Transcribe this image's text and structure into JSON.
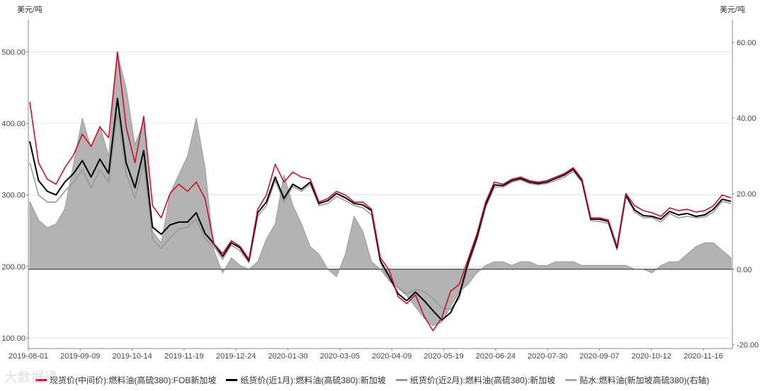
{
  "chart_data": {
    "type": "line",
    "unit_left": "美元/吨",
    "unit_right": "美元/吨",
    "x_labels": [
      "2019-08-01",
      "2019-09-09",
      "2019-10-14",
      "2019-11-19",
      "2019-12-24",
      "2020-01-30",
      "2020-03-05",
      "2020-04-09",
      "2020-05-19",
      "2020-06-24",
      "2020-07-30",
      "2020-09-07",
      "2020-10-12",
      "2020-11-16"
    ],
    "y_left": {
      "min": 85,
      "max": 545,
      "ticks": [
        "100.00",
        "200.00",
        "300.00",
        "400.00",
        "500.00"
      ],
      "tick_values": [
        100,
        200,
        300,
        400,
        500
      ]
    },
    "y_right": {
      "min": -21,
      "max": 66,
      "ticks": [
        "-20.00",
        "0.00",
        "20.00",
        "40.00",
        "60.00"
      ],
      "tick_values": [
        -20,
        0,
        20,
        40,
        60
      ]
    },
    "series": [
      {
        "name": "现货价(中间价):燃料油(高硫380):FOB新加坡",
        "color": "#c8102e",
        "axis": "left",
        "values": [
          430,
          345,
          322,
          315,
          338,
          356,
          385,
          368,
          395,
          380,
          500,
          395,
          345,
          410,
          285,
          268,
          302,
          315,
          305,
          318,
          295,
          232,
          218,
          236,
          228,
          210,
          280,
          300,
          343,
          318,
          332,
          325,
          322,
          290,
          295,
          305,
          300,
          290,
          290,
          280,
          212,
          195,
          158,
          148,
          160,
          130,
          110,
          128,
          165,
          175,
          210,
          245,
          290,
          318,
          315,
          322,
          325,
          320,
          318,
          320,
          325,
          330,
          338,
          322,
          268,
          268,
          265,
          228,
          302,
          285,
          278,
          275,
          270,
          282,
          278,
          280,
          276,
          278,
          285,
          300,
          296
        ]
      },
      {
        "name": "纸货价(近1月):燃料油(高硫380):新加坡",
        "color": "#000000",
        "axis": "left",
        "values": [
          375,
          320,
          305,
          300,
          318,
          330,
          348,
          325,
          350,
          330,
          435,
          345,
          310,
          362,
          255,
          245,
          258,
          262,
          262,
          275,
          246,
          232,
          214,
          233,
          226,
          208,
          275,
          290,
          325,
          295,
          315,
          308,
          318,
          288,
          292,
          302,
          296,
          288,
          286,
          278,
          208,
          186,
          162,
          152,
          164,
          152,
          138,
          125,
          135,
          160,
          205,
          240,
          286,
          314,
          313,
          320,
          323,
          318,
          316,
          318,
          323,
          328,
          336,
          320,
          266,
          266,
          263,
          226,
          300,
          279,
          271,
          270,
          266,
          277,
          272,
          274,
          270,
          272,
          280,
          294,
          291
        ]
      },
      {
        "name": "纸货价(近2月):燃料油(高硫380):新加坡",
        "color": "#999999",
        "axis": "left",
        "values": [
          345,
          300,
          290,
          290,
          305,
          318,
          335,
          310,
          335,
          318,
          415,
          330,
          295,
          345,
          238,
          225,
          240,
          252,
          255,
          266,
          238,
          228,
          210,
          230,
          222,
          205,
          270,
          285,
          320,
          290,
          312,
          305,
          315,
          285,
          288,
          298,
          292,
          285,
          282,
          272,
          205,
          180,
          170,
          162,
          168,
          165,
          155,
          142,
          140,
          155,
          200,
          236,
          282,
          311,
          311,
          318,
          321,
          316,
          314,
          316,
          320,
          325,
          333,
          318,
          264,
          263,
          260,
          223,
          298,
          276,
          268,
          268,
          262,
          274,
          268,
          270,
          268,
          269,
          276,
          291,
          288
        ]
      },
      {
        "name": "贴水:燃料油(新加坡高硫380)(右轴)",
        "color": "#aaaaaa",
        "axis": "right",
        "fill": true,
        "values": [
          18,
          13,
          11,
          12,
          16,
          28,
          40,
          32,
          38,
          30,
          57,
          48,
          33,
          39,
          10,
          7,
          20,
          25,
          30,
          40,
          27,
          5,
          -1,
          3,
          1,
          0,
          2,
          8,
          12,
          25,
          17,
          12,
          6,
          4,
          0,
          -2,
          4,
          14,
          10,
          2,
          0,
          -3,
          -5,
          -7,
          -10,
          -13,
          -15,
          -14,
          -10,
          -6,
          -4,
          -1,
          1,
          2,
          2,
          1,
          2,
          2,
          1,
          1,
          2,
          2,
          2,
          1,
          1,
          1,
          1,
          1,
          1,
          0,
          0,
          -1,
          1,
          2,
          2,
          4,
          6,
          7,
          7,
          5,
          3
        ]
      }
    ]
  },
  "legend": [
    {
      "label": "现货价(中间价):燃料油(高硫380):FOB新加坡",
      "color": "#c8102e"
    },
    {
      "label": "纸货价(近1月):燃料油(高硫380):新加坡",
      "color": "#000000"
    },
    {
      "label": "纸货价(近2月):燃料油(高硫380):新加坡",
      "color": "#999999"
    },
    {
      "label": "贴水:燃料油(新加坡高硫380)(右轴)",
      "color": "#aaaaaa"
    }
  ],
  "watermark": "大数据通"
}
